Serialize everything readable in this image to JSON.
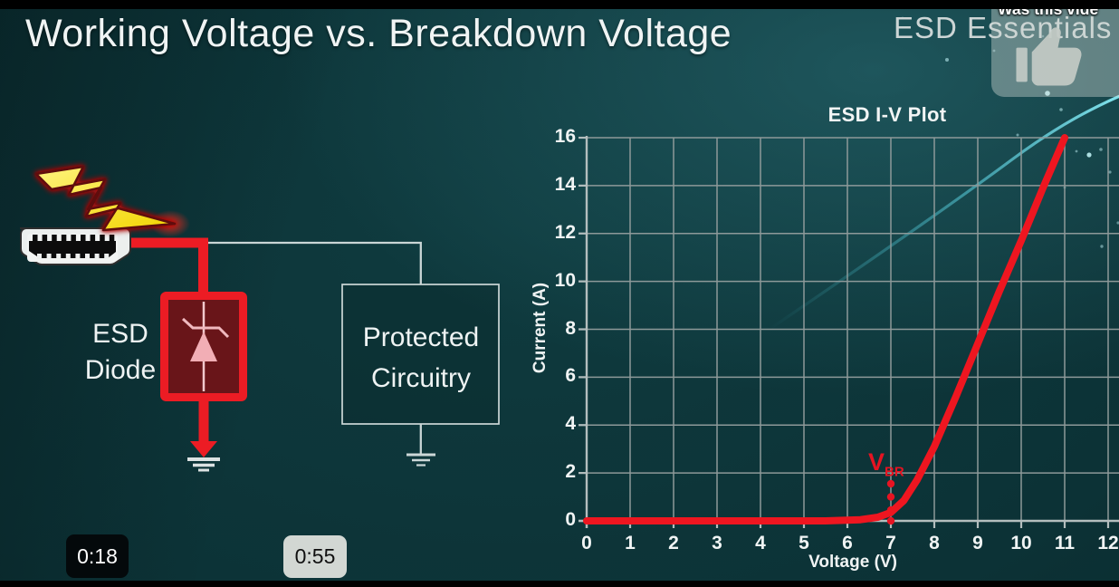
{
  "frame": {
    "title": "Working Voltage vs. Breakdown Voltage",
    "brand": "ESD Essentials",
    "endscreen": {
      "prompt": "Was this vide",
      "icon": "thumbs-up-icon"
    },
    "timestamps": {
      "current": "0:18",
      "preview": "0:55"
    }
  },
  "diagram": {
    "strike_icon": "lightning-bolt-icon",
    "source_icon": "hdmi-connector-icon",
    "ground_icon": "ground-symbol-icon",
    "esd_diode": {
      "line1": "ESD",
      "line2": "Diode",
      "border_color": "#ec1c24",
      "fill_color": "#691519"
    },
    "protected": {
      "line1": "Protected",
      "line2": "Circuitry",
      "border_color": "#ccd7d7"
    },
    "surge_wire_color": "#ec1c24",
    "signal_wire_color": "#c9d5d5"
  },
  "chart_data": {
    "type": "line",
    "title": "ESD I-V Plot",
    "xlabel": "Voltage (V)",
    "ylabel": "Current (A)",
    "xlim": [
      0,
      12.25
    ],
    "ylim": [
      0,
      16
    ],
    "xticks": [
      0,
      1,
      2,
      3,
      4,
      5,
      6,
      7,
      8,
      9,
      10,
      11,
      12
    ],
    "yticks": [
      0,
      2,
      4,
      6,
      8,
      10,
      12,
      14,
      16
    ],
    "grid": true,
    "grid_color": "#8d9999",
    "series": [
      {
        "name": "ESD diode I-V curve",
        "color": "#ee1620",
        "points": [
          [
            0,
            0
          ],
          [
            4,
            0
          ],
          [
            5.5,
            0
          ],
          [
            6.3,
            0.05
          ],
          [
            6.7,
            0.15
          ],
          [
            7,
            0.35
          ],
          [
            7.3,
            0.85
          ],
          [
            7.6,
            1.7
          ],
          [
            8,
            3.1
          ],
          [
            8.5,
            5.2
          ],
          [
            9,
            7.4
          ],
          [
            9.5,
            9.6
          ],
          [
            10,
            11.7
          ],
          [
            10.5,
            13.9
          ],
          [
            11,
            16
          ]
        ]
      }
    ],
    "annotation": {
      "label": "V",
      "sub": "BR",
      "x": 7,
      "dot_values": [
        0,
        0.45,
        1.0,
        1.55
      ],
      "color": "#e61422"
    }
  }
}
